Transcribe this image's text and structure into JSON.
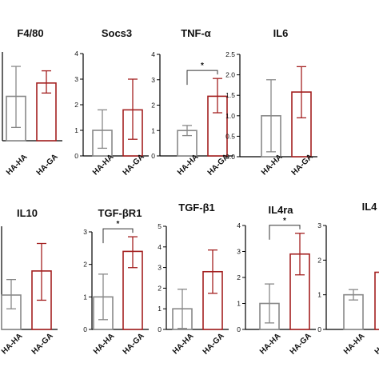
{
  "colors": {
    "control": "#888888",
    "treated": "#a31f1f",
    "axis": "#000000"
  },
  "chart_data": [
    {
      "type": "bar",
      "title": "F4/80",
      "categories": [
        "HA-HA",
        "HA-GA"
      ],
      "values": [
        2.0,
        2.6
      ],
      "errors": [
        [
          0.6,
          3.35
        ],
        [
          2.15,
          3.15
        ]
      ],
      "ylim": [
        0,
        4
      ],
      "yticks": [],
      "significance": null
    },
    {
      "type": "bar",
      "title": "Socs3",
      "categories": [
        "HA-HA",
        "HA-GA"
      ],
      "values": [
        1.0,
        1.8
      ],
      "errors": [
        [
          0.3,
          1.8
        ],
        [
          0.65,
          3.0
        ]
      ],
      "ylim": [
        0,
        4
      ],
      "yticks": [
        "0",
        "1",
        "2",
        "3",
        "4"
      ],
      "significance": null
    },
    {
      "type": "bar",
      "title": "TNF-α",
      "categories": [
        "HA-HA",
        "HA-GA"
      ],
      "values": [
        1.0,
        2.35
      ],
      "errors": [
        [
          0.8,
          1.2
        ],
        [
          1.7,
          3.05
        ]
      ],
      "ylim": [
        0,
        4
      ],
      "yticks": [
        "0",
        "1",
        "2",
        "3",
        "4"
      ],
      "significance": "*"
    },
    {
      "type": "bar",
      "title": "IL6",
      "categories": [
        "HA-HA",
        "HA-GA"
      ],
      "values": [
        1.0,
        1.58
      ],
      "errors": [
        [
          0.12,
          1.88
        ],
        [
          0.95,
          2.2
        ]
      ],
      "ylim": [
        0,
        2.5
      ],
      "yticks": [
        "0.0",
        "0.5",
        "1.0",
        "1.5",
        "2.0",
        "2.5"
      ],
      "significance": null
    },
    {
      "type": "bar",
      "title": "IL10",
      "categories": [
        "HA-HA",
        "HA-GA"
      ],
      "values": [
        1.0,
        1.7
      ],
      "errors": [
        [
          0.6,
          1.45
        ],
        [
          0.85,
          2.5
        ]
      ],
      "ylim": [
        0,
        3
      ],
      "yticks": [],
      "significance": null
    },
    {
      "type": "bar",
      "title": "TGF-βR1",
      "categories": [
        "HA-HA",
        "HA-GA"
      ],
      "values": [
        1.0,
        2.4
      ],
      "errors": [
        [
          0.3,
          1.7
        ],
        [
          1.9,
          2.85
        ]
      ],
      "ylim": [
        0,
        3
      ],
      "yticks": [
        "0",
        "1",
        "2",
        "3"
      ],
      "significance": "*"
    },
    {
      "type": "bar",
      "title": "TGF-β1",
      "categories": [
        "HA-HA",
        "HA-GA"
      ],
      "values": [
        1.0,
        2.8
      ],
      "errors": [
        [
          0.05,
          1.95
        ],
        [
          1.75,
          3.85
        ]
      ],
      "ylim": [
        0,
        5
      ],
      "yticks": [
        "0",
        "1",
        "2",
        "3",
        "4",
        "5"
      ],
      "significance": null
    },
    {
      "type": "bar",
      "title": "IL4ra",
      "categories": [
        "HA-HA",
        "HA-GA"
      ],
      "values": [
        1.0,
        2.9
      ],
      "errors": [
        [
          0.25,
          1.75
        ],
        [
          2.1,
          3.7
        ]
      ],
      "ylim": [
        0,
        4
      ],
      "yticks": [
        "0",
        "1",
        "2",
        "3",
        "4"
      ],
      "significance": "*"
    },
    {
      "type": "bar",
      "title": "IL4",
      "categories": [
        "HA-HA",
        "HA-GA"
      ],
      "values": [
        1.0,
        1.65
      ],
      "errors": [
        [
          0.85,
          1.15
        ],
        [
          null,
          null
        ]
      ],
      "ylim": [
        0,
        3
      ],
      "yticks": [
        "0",
        "1",
        "2",
        "3"
      ],
      "significance": null
    }
  ]
}
